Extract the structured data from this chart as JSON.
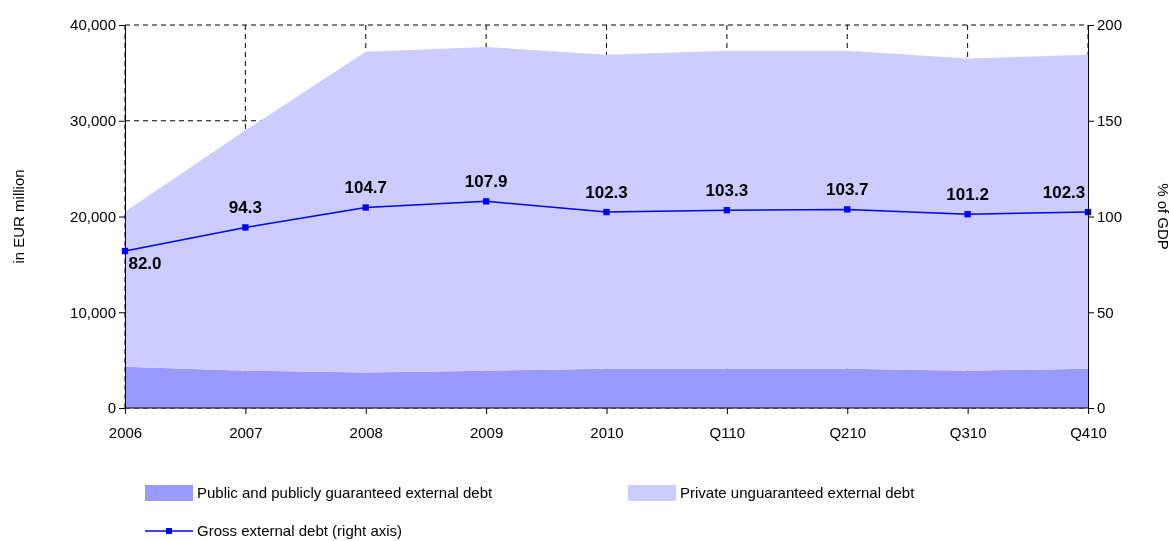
{
  "chart_data": {
    "type": "area",
    "stacked": true,
    "ylabel": "in EUR million",
    "y2label": "% of GDP",
    "categories": [
      "2006",
      "2007",
      "2008",
      "2009",
      "2010",
      "Q110",
      "Q210",
      "Q310",
      "Q410"
    ],
    "series": [
      {
        "name": "Public and publicly guaranteed external debt",
        "color": "#9999ff",
        "values": [
          4300,
          3900,
          3700,
          3900,
          4100,
          4100,
          4100,
          3900,
          4100
        ]
      },
      {
        "name": "Private unguaranteed external debt",
        "color": "#ccccff",
        "values": [
          16200,
          25100,
          33500,
          33800,
          32800,
          33200,
          33200,
          32600,
          32800
        ]
      },
      {
        "name": "Gross external debt (right axis)",
        "type": "line",
        "axis": "y2",
        "color": "#0000ff",
        "marker": "square",
        "values": [
          82.0,
          94.3,
          104.7,
          107.9,
          102.3,
          103.3,
          103.7,
          101.2,
          102.3
        ],
        "value_labels": [
          "82.0",
          "94.3",
          "104.7",
          "107.9",
          "102.3",
          "103.3",
          "103.7",
          "101.2",
          "102.3"
        ]
      }
    ],
    "ylim": [
      0,
      40000
    ],
    "yticks": [
      0,
      {
        "value": 10000,
        "label": "10,000"
      },
      {
        "value": 20000,
        "label": "20,000"
      },
      {
        "value": 30000,
        "label": "30,000"
      },
      {
        "value": 40000,
        "label": "40,000"
      }
    ],
    "y2lim": [
      0,
      200
    ],
    "y2ticks": [
      0,
      50,
      100,
      150,
      200
    ],
    "grid": true,
    "legend": "bottom"
  }
}
